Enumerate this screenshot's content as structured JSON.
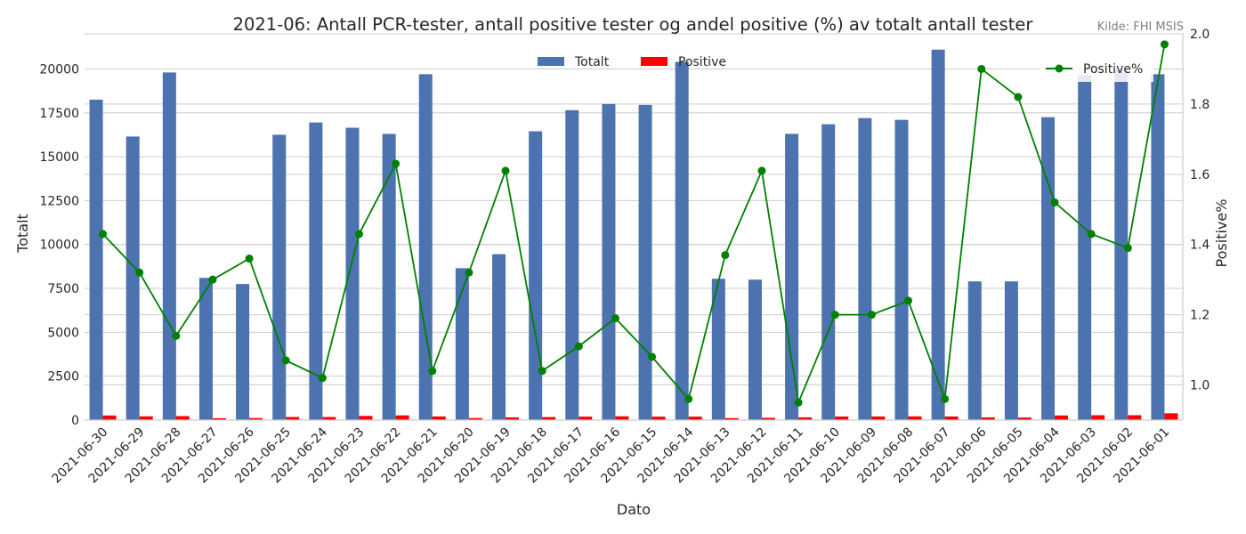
{
  "source": "Kilde: FHI MSIS",
  "chart_data": {
    "type": "bar+line",
    "title": "2021-06: Antall PCR-tester, antall positive tester og andel positive (%) av totalt antall tester",
    "xlabel": "Dato",
    "ylabel_left": "Totalt",
    "ylabel_right": "Positive%",
    "ylim_left": [
      0,
      22000
    ],
    "ylim_right": [
      0.9,
      2.0
    ],
    "yticks_left": [
      0,
      2500,
      5000,
      7500,
      10000,
      12500,
      15000,
      17500,
      20000
    ],
    "yticks_right": [
      1.0,
      1.2,
      1.4,
      1.6,
      1.8,
      2.0
    ],
    "yticks_right_labels": [
      "1.0",
      "1.2",
      "1.4",
      "1.6",
      "1.8",
      "2.0"
    ],
    "grid": true,
    "legend_bars_position": "top-center",
    "legend_line_position": "top-right",
    "categories": [
      "2021-06-30",
      "2021-06-29",
      "2021-06-28",
      "2021-06-27",
      "2021-06-26",
      "2021-06-25",
      "2021-06-24",
      "2021-06-23",
      "2021-06-22",
      "2021-06-21",
      "2021-06-20",
      "2021-06-19",
      "2021-06-18",
      "2021-06-17",
      "2021-06-16",
      "2021-06-15",
      "2021-06-14",
      "2021-06-13",
      "2021-06-12",
      "2021-06-11",
      "2021-06-10",
      "2021-06-09",
      "2021-06-08",
      "2021-06-07",
      "2021-06-06",
      "2021-06-05",
      "2021-06-04",
      "2021-06-03",
      "2021-06-02",
      "2021-06-01"
    ],
    "series": [
      {
        "name": "Totalt",
        "kind": "bar",
        "color": "#4c72b0",
        "values": [
          18250,
          16150,
          19800,
          8100,
          7750,
          16250,
          16950,
          16650,
          16300,
          19700,
          8650,
          9450,
          16450,
          17650,
          18000,
          17950,
          20400,
          8050,
          8000,
          16300,
          16850,
          17200,
          17100,
          21100,
          7900,
          7900,
          17250,
          19650,
          19950,
          19700
        ]
      },
      {
        "name": "Positive",
        "kind": "bar",
        "color": "#ff0000",
        "values": [
          261,
          213,
          226,
          105,
          113,
          174,
          173,
          238,
          266,
          205,
          115,
          152,
          171,
          196,
          214,
          194,
          196,
          110,
          129,
          155,
          202,
          206,
          212,
          203,
          150,
          144,
          262,
          277,
          277,
          388
        ]
      },
      {
        "name": "Positive%",
        "kind": "line",
        "color": "#008000",
        "values": [
          1.43,
          1.32,
          1.14,
          1.3,
          1.36,
          1.07,
          1.02,
          1.43,
          1.63,
          1.04,
          1.32,
          1.61,
          1.04,
          1.11,
          1.19,
          1.08,
          0.96,
          1.37,
          1.61,
          0.95,
          1.2,
          1.2,
          1.24,
          0.96,
          1.9,
          1.82,
          1.52,
          1.43,
          1.39,
          1.97
        ]
      }
    ]
  }
}
